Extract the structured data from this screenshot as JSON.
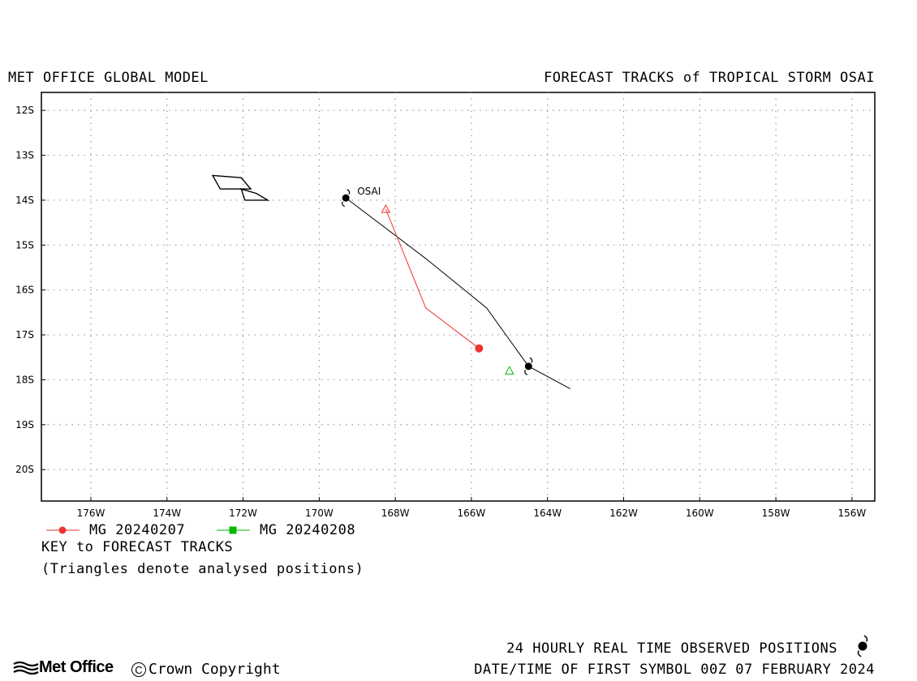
{
  "header": {
    "left_title": "MET OFFICE GLOBAL MODEL",
    "right_title": "FORECAST TRACKS of TROPICAL STORM OSAI"
  },
  "map": {
    "lon_range": [
      -177.3,
      -155.4
    ],
    "lat_range": [
      -20.7,
      -11.6
    ],
    "lon_ticks": [
      {
        "value": -176,
        "label": "176W"
      },
      {
        "value": -174,
        "label": "174W"
      },
      {
        "value": -172,
        "label": "172W"
      },
      {
        "value": -170,
        "label": "170W"
      },
      {
        "value": -168,
        "label": "168W"
      },
      {
        "value": -166,
        "label": "166W"
      },
      {
        "value": -164,
        "label": "164W"
      },
      {
        "value": -162,
        "label": "162W"
      },
      {
        "value": -160,
        "label": "160W"
      },
      {
        "value": -158,
        "label": "158W"
      },
      {
        "value": -156,
        "label": "156W"
      }
    ],
    "lat_ticks": [
      {
        "value": -12,
        "label": "12S"
      },
      {
        "value": -13,
        "label": "13S"
      },
      {
        "value": -14,
        "label": "14S"
      },
      {
        "value": -15,
        "label": "15S"
      },
      {
        "value": -16,
        "label": "16S"
      },
      {
        "value": -17,
        "label": "17S"
      },
      {
        "value": -18,
        "label": "18S"
      },
      {
        "value": -19,
        "label": "19S"
      },
      {
        "value": -20,
        "label": "20S"
      }
    ],
    "grid": true,
    "land_outlines": [
      [
        [
          -172.8,
          -13.45
        ],
        [
          -172.05,
          -13.5
        ],
        [
          -171.8,
          -13.75
        ],
        [
          -172.6,
          -13.75
        ],
        [
          -172.8,
          -13.45
        ]
      ],
      [
        [
          -172.05,
          -13.75
        ],
        [
          -171.65,
          -13.85
        ],
        [
          -171.35,
          -14.0
        ],
        [
          -171.95,
          -14.0
        ],
        [
          -172.05,
          -13.75
        ]
      ]
    ],
    "storm_name": "OSAI",
    "storm_label_pos": [
      -169.0,
      -13.8
    ],
    "observed_track": {
      "color": "#000000",
      "points": [
        [
          -169.3,
          -13.95
        ],
        [
          -167.2,
          -15.3
        ],
        [
          -165.6,
          -16.4
        ],
        [
          -164.5,
          -17.7
        ],
        [
          -163.4,
          -18.2
        ]
      ],
      "symbols": [
        [
          -169.3,
          -13.95
        ],
        [
          -164.5,
          -17.7
        ]
      ]
    },
    "forecast_tracks": [
      {
        "name": "MG 20240207",
        "color": "#ee3333",
        "marker": "circle",
        "analysed": [
          -168.25,
          -14.2
        ],
        "points": [
          [
            -168.25,
            -14.2
          ],
          [
            -167.2,
            -16.4
          ],
          [
            -165.8,
            -17.3
          ]
        ],
        "markers": [
          [
            -165.8,
            -17.3
          ]
        ]
      },
      {
        "name": "MG 20240208",
        "color": "#00bb00",
        "marker": "square",
        "analysed": [
          -165.0,
          -17.8
        ],
        "points": [
          [
            -165.0,
            -17.8
          ]
        ],
        "markers": []
      }
    ]
  },
  "legend": {
    "key_title": "KEY to FORECAST TRACKS",
    "note": "(Triangles denote analysed positions)"
  },
  "footer": {
    "observed": "24 HOURLY REAL TIME OBSERVED POSITIONS",
    "datetime": "DATE/TIME OF FIRST SYMBOL 00Z 07 FEBRUARY 2024",
    "logo": "Met Office",
    "copyright": "Crown Copyright"
  }
}
